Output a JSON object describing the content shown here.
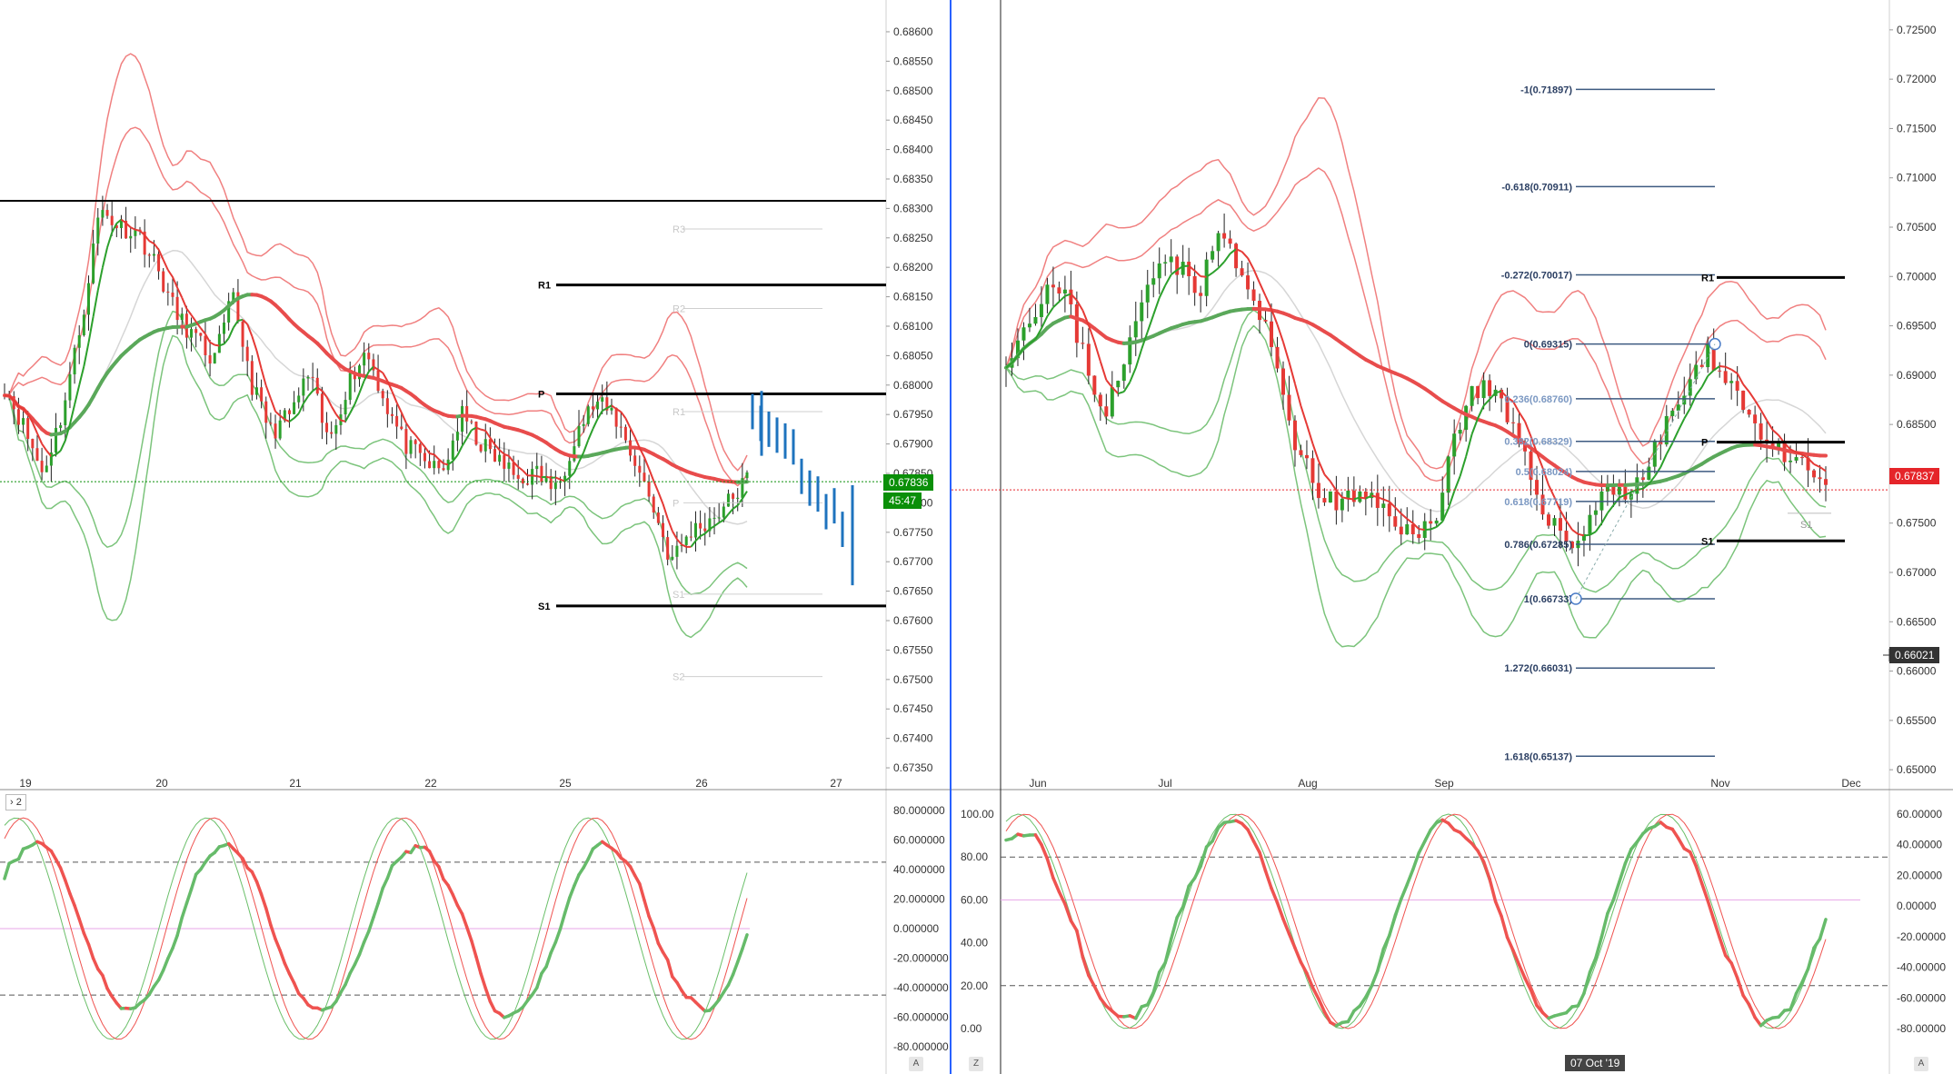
{
  "colors": {
    "bull": "#2ca02c",
    "bear": "#e53935",
    "ma": "#e84c4c",
    "bb_upper": "#f08080",
    "bb_lower": "#7cc47c",
    "stoch_k_green": "#66bb6a",
    "stoch_k_red": "#ef5350",
    "forecast": "#1e73be",
    "price_green": "#0a8f08",
    "price_red": "#e5252a",
    "fib_line": "#3d5a80",
    "pivot": "#000000",
    "divider": "#2962ff"
  },
  "left_panel": {
    "price_labels": [
      "0.68600",
      "0.68550",
      "0.68500",
      "0.68450",
      "0.68400",
      "0.68350",
      "0.68300",
      "0.68250",
      "0.68200",
      "0.68150",
      "0.68100",
      "0.68050",
      "0.68000",
      "0.67950",
      "0.67900",
      "0.67850",
      "0.67800",
      "0.67750",
      "0.67700",
      "0.67650",
      "0.67600",
      "0.67550",
      "0.67500",
      "0.67450",
      "0.67400",
      "0.67350"
    ],
    "current_price": "0.67836",
    "countdown": "45:47",
    "time_labels": [
      "19",
      "20",
      "21",
      "22",
      "25",
      "26",
      "27"
    ],
    "pivots": [
      {
        "label": "R1",
        "value": 0.6817,
        "bold": true
      },
      {
        "label": "P",
        "value": 0.67985,
        "bold": true
      },
      {
        "label": "S1",
        "value": 0.67625,
        "bold": true
      },
      {
        "label": "R3",
        "value": 0.68265,
        "bold": false
      },
      {
        "label": "R2",
        "value": 0.6813,
        "bold": false
      },
      {
        "label": "R1",
        "value": 0.67955,
        "bold": false
      },
      {
        "label": "P",
        "value": 0.678,
        "bold": false
      },
      {
        "label": "S1",
        "value": 0.67645,
        "bold": false
      },
      {
        "label": "S2",
        "value": 0.67505,
        "bold": false
      }
    ],
    "osc_button": "2",
    "osc_labels": [
      "80.000000",
      "60.000000",
      "40.000000",
      "20.000000",
      "0.000000",
      "-20.000000",
      "-40.000000",
      "-60.000000",
      "-80.000000"
    ],
    "corner_button": "A"
  },
  "right_panel": {
    "price_labels": [
      "0.72500",
      "0.72000",
      "0.71500",
      "0.71000",
      "0.70500",
      "0.70000",
      "0.69500",
      "0.69000",
      "0.68500",
      "0.68000",
      "0.67500",
      "0.67000",
      "0.66500",
      "0.66000",
      "0.65500",
      "0.65000"
    ],
    "current_price": "0.67837",
    "crosshair_price": "0.66021",
    "time_labels": [
      "Jun",
      "Jul",
      "Aug",
      "Sep",
      "Nov",
      "Dec"
    ],
    "crosshair_date": "07 Oct '19",
    "fib_levels": [
      {
        "label": "-1(0.71897)",
        "value": 0.71897
      },
      {
        "label": "-0.618(0.70911)",
        "value": 0.70911
      },
      {
        "label": "-0.272(0.70017)",
        "value": 0.70017
      },
      {
        "label": "0(0.69315)",
        "value": 0.69315
      },
      {
        "label": "0.236(0.68760)",
        "value": 0.6876
      },
      {
        "label": "0.382(0.68329)",
        "value": 0.68329
      },
      {
        "label": "0.5(0.68024)",
        "value": 0.68024
      },
      {
        "label": "0.618(0.67719)",
        "value": 0.67719
      },
      {
        "label": "0.786(0.67285)",
        "value": 0.67285
      },
      {
        "label": "1(0.66733)",
        "value": 0.66733
      },
      {
        "label": "1.272(0.66031)",
        "value": 0.66031
      },
      {
        "label": "1.618(0.65137)",
        "value": 0.65137
      }
    ],
    "pivots": [
      {
        "label": "R1",
        "value": 0.6999,
        "bold": true
      },
      {
        "label": "P",
        "value": 0.6832,
        "bold": true
      },
      {
        "label": "S1",
        "value": 0.6732,
        "bold": true
      },
      {
        "label": "S1",
        "value": 0.676,
        "bold": false
      }
    ],
    "osc_left_labels": [
      "100.00",
      "80.00",
      "60.00",
      "40.00",
      "20.00",
      "0.00"
    ],
    "osc_right_labels": [
      "60.00000",
      "40.00000",
      "20.00000",
      "0.00000",
      "-20.00000",
      "-40.00000",
      "-60.00000",
      "-80.00000"
    ],
    "corner_left": "Z",
    "corner_right": "A"
  },
  "chart_data": [
    {
      "type": "candlestick",
      "title": "",
      "timeframe_hint": "hourly, 19–27",
      "x_labels": [
        "19",
        "20",
        "21",
        "22",
        "25",
        "26",
        "27"
      ],
      "ylim": [
        0.6733,
        0.6862
      ],
      "close_path": [
        0.68,
        0.6793,
        0.6785,
        0.6795,
        0.681,
        0.683,
        0.6827,
        0.6826,
        0.682,
        0.6812,
        0.6808,
        0.6804,
        0.6815,
        0.68,
        0.6792,
        0.6795,
        0.6802,
        0.679,
        0.68,
        0.6806,
        0.6797,
        0.679,
        0.6787,
        0.6785,
        0.6795,
        0.679,
        0.6787,
        0.6784,
        0.6785,
        0.6782,
        0.6792,
        0.6797,
        0.6795,
        0.6788,
        0.678,
        0.677,
        0.6775,
        0.6777,
        0.678,
        0.6784
      ],
      "forecast_ticks": [
        0.6796,
        0.6794,
        0.6793,
        0.6792,
        0.6791,
        0.679,
        0.6785,
        0.6783,
        0.6782,
        0.6779,
        0.678,
        0.6776
      ],
      "pivot_levels": {
        "R1": 0.6817,
        "P": 0.67985,
        "S1": 0.67625
      },
      "oscillator": {
        "name": "stochastic",
        "ylim": [
          -80,
          80
        ],
        "levels": [
          45,
          -45
        ]
      }
    },
    {
      "type": "candlestick",
      "title": "",
      "timeframe_hint": "daily, Jun–Dec",
      "x_labels": [
        "Jun",
        "Jul",
        "Aug",
        "Sep",
        "Nov",
        "Dec"
      ],
      "ylim": [
        0.649,
        0.726
      ],
      "close_path": [
        0.692,
        0.695,
        0.699,
        0.698,
        0.692,
        0.686,
        0.6905,
        0.698,
        0.703,
        0.7005,
        0.699,
        0.705,
        0.7,
        0.696,
        0.69,
        0.682,
        0.678,
        0.677,
        0.6775,
        0.677,
        0.6755,
        0.673,
        0.676,
        0.684,
        0.689,
        0.688,
        0.684,
        0.679,
        0.675,
        0.6725,
        0.676,
        0.679,
        0.678,
        0.681,
        0.686,
        0.689,
        0.692,
        0.69,
        0.686,
        0.6835,
        0.681,
        0.6805,
        0.679
      ],
      "fib_levels": [
        -1,
        -0.618,
        -0.272,
        0,
        0.236,
        0.382,
        0.5,
        0.618,
        0.786,
        1,
        1.272,
        1.618
      ],
      "oscillator": {
        "name": "stochastic",
        "ylim": [
          0,
          100
        ],
        "levels": [
          80,
          20
        ]
      }
    }
  ]
}
